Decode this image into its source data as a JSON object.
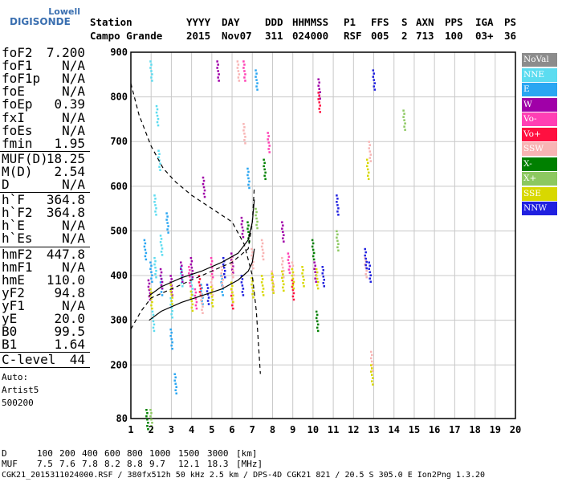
{
  "logo": {
    "line1": "Lowell",
    "line2": "DIGISONDE"
  },
  "header": {
    "row1": [
      "Station",
      "YYYY",
      "DAY",
      "DDD",
      "HHMMSS",
      "P1",
      "FFS",
      "S",
      "AXN",
      "PPS",
      "IGA",
      "PS"
    ],
    "row2": [
      "Campo Grande",
      "2015",
      "Nov07",
      "311",
      "024000",
      "RSF",
      "005",
      "2",
      "713",
      "100",
      "03+",
      "36"
    ]
  },
  "params": {
    "group1": [
      {
        "k": "foF2",
        "v": "7.200"
      },
      {
        "k": "foF1",
        "v": "N/A"
      },
      {
        "k": "foF1p",
        "v": "N/A"
      },
      {
        "k": "foE",
        "v": "N/A"
      },
      {
        "k": "foEp",
        "v": "0.39"
      },
      {
        "k": "fxI",
        "v": "N/A"
      },
      {
        "k": "foEs",
        "v": "N/A"
      },
      {
        "k": "fmin",
        "v": "1.95"
      }
    ],
    "group2": [
      {
        "k": "MUF(D)",
        "v": "18.25"
      },
      {
        "k": "M(D)",
        "v": "2.54"
      },
      {
        "k": "D",
        "v": "N/A"
      }
    ],
    "group3": [
      {
        "k": "h`F",
        "v": "364.8"
      },
      {
        "k": "h`F2",
        "v": "364.8"
      },
      {
        "k": "h`E",
        "v": "N/A"
      },
      {
        "k": "h`Es",
        "v": "N/A"
      }
    ],
    "group4": [
      {
        "k": "hmF2",
        "v": "447.8"
      },
      {
        "k": "hmF1",
        "v": "N/A"
      },
      {
        "k": "hmE",
        "v": "110.0"
      },
      {
        "k": "yF2",
        "v": "94.8"
      },
      {
        "k": "yF1",
        "v": "N/A"
      },
      {
        "k": "yE",
        "v": "20.0"
      },
      {
        "k": "B0",
        "v": "99.5"
      },
      {
        "k": "B1",
        "v": "1.64"
      }
    ],
    "group5": [
      {
        "k": "C-level",
        "v": "44"
      }
    ],
    "auto": [
      "Auto:",
      "Artist5",
      "500200"
    ]
  },
  "footer": {
    "d_label": "D",
    "d_values": [
      "100",
      "200",
      "400",
      "600",
      "800",
      "1000",
      "1500",
      "3000",
      "[km]"
    ],
    "muf_label": "MUF",
    "muf_values": [
      "7.5",
      "7.6",
      "7.8",
      "8.2",
      "8.8",
      "9.7",
      "12.1",
      "18.3",
      "[MHz]"
    ],
    "info": "CGK21_2015311024000.RSF / 380fx512h 50 kHz 2.5 km / DPS-4D CGK21 821 / 20.5 S 305.0 E Ion2Png 1.3.20"
  },
  "legend": [
    {
      "label": "NoVal",
      "color": "#8c8c8c"
    },
    {
      "label": "NNE",
      "color": "#5cdcf0"
    },
    {
      "label": "E",
      "color": "#2aa6f2"
    },
    {
      "label": "W",
      "color": "#a000a8"
    },
    {
      "label": "Vo-",
      "color": "#ff3fb4"
    },
    {
      "label": "Vo+",
      "color": "#ff1040"
    },
    {
      "label": "SSW",
      "color": "#f8b4b4"
    },
    {
      "label": "X-",
      "color": "#008000"
    },
    {
      "label": "X+",
      "color": "#8cc860"
    },
    {
      "label": "SSE",
      "color": "#d8d800"
    },
    {
      "label": "NNW",
      "color": "#2020e0"
    }
  ],
  "chart_data": {
    "type": "scatter",
    "title": "",
    "xlabel": "",
    "ylabel": "",
    "xlim": [
      1,
      20
    ],
    "ylim": [
      80,
      900
    ],
    "x_ticks": [
      1,
      2,
      3,
      4,
      5,
      6,
      7,
      8,
      9,
      10,
      11,
      12,
      13,
      14,
      15,
      16,
      17,
      18,
      19,
      20
    ],
    "y_ticks": [
      80,
      200,
      300,
      400,
      500,
      600,
      700,
      800,
      900
    ],
    "grid": true,
    "legend_position": "right",
    "series": [
      {
        "name": "NNE",
        "color": "#5cdcf0",
        "points": [
          [
            2.1,
            300
          ],
          [
            2.2,
            420
          ],
          [
            2.3,
            760
          ],
          [
            2.4,
            660
          ],
          [
            2.2,
            560
          ],
          [
            2.5,
            470
          ],
          [
            3.0,
            330
          ],
          [
            3.5,
            400
          ],
          [
            4.0,
            380
          ],
          [
            2.0,
            860
          ]
        ]
      },
      {
        "name": "E",
        "color": "#2aa6f2",
        "points": [
          [
            1.7,
            460
          ],
          [
            2.0,
            410
          ],
          [
            2.5,
            380
          ],
          [
            2.8,
            520
          ],
          [
            3.0,
            260
          ],
          [
            3.2,
            160
          ],
          [
            4.5,
            360
          ],
          [
            5.5,
            380
          ],
          [
            6.8,
            620
          ],
          [
            7.2,
            840
          ]
        ]
      },
      {
        "name": "W",
        "color": "#a000a8",
        "points": [
          [
            1.9,
            370
          ],
          [
            2.5,
            395
          ],
          [
            3.0,
            380
          ],
          [
            3.5,
            410
          ],
          [
            4.0,
            420
          ],
          [
            4.6,
            600
          ],
          [
            5.3,
            860
          ],
          [
            6.0,
            430
          ],
          [
            6.5,
            510
          ],
          [
            8.5,
            500
          ],
          [
            10.1,
            410
          ],
          [
            10.3,
            820
          ]
        ]
      },
      {
        "name": "Vo-",
        "color": "#ff3fb4",
        "points": [
          [
            3.9,
            400
          ],
          [
            4.2,
            350
          ],
          [
            5.0,
            420
          ],
          [
            6.6,
            860
          ],
          [
            7.8,
            700
          ],
          [
            8.8,
            430
          ]
        ]
      },
      {
        "name": "Vo+",
        "color": "#ff1040",
        "points": [
          [
            4.4,
            380
          ],
          [
            6.0,
            350
          ],
          [
            9.0,
            370
          ],
          [
            10.3,
            790
          ]
        ]
      },
      {
        "name": "SSW",
        "color": "#f8b4b4",
        "points": [
          [
            4.5,
            340
          ],
          [
            5.0,
            380
          ],
          [
            5.5,
            400
          ],
          [
            6.0,
            420
          ],
          [
            6.3,
            860
          ],
          [
            6.6,
            720
          ],
          [
            7.0,
            440
          ],
          [
            7.5,
            460
          ],
          [
            8.0,
            390
          ],
          [
            8.5,
            420
          ],
          [
            9.0,
            410
          ],
          [
            12.6,
            420
          ],
          [
            12.8,
            680
          ],
          [
            12.9,
            210
          ]
        ]
      },
      {
        "name": "X-",
        "color": "#008000",
        "points": [
          [
            1.8,
            80
          ],
          [
            6.8,
            500
          ],
          [
            7.6,
            640
          ],
          [
            10.0,
            460
          ],
          [
            10.2,
            300
          ]
        ]
      },
      {
        "name": "X+",
        "color": "#8cc860",
        "points": [
          [
            2.0,
            80
          ],
          [
            7.2,
            530
          ],
          [
            11.2,
            480
          ],
          [
            14.5,
            750
          ]
        ]
      },
      {
        "name": "SSE",
        "color": "#d8d800",
        "points": [
          [
            2.0,
            350
          ],
          [
            3.0,
            360
          ],
          [
            4.0,
            345
          ],
          [
            5.0,
            355
          ],
          [
            6.0,
            365
          ],
          [
            7.0,
            375
          ],
          [
            7.5,
            380
          ],
          [
            8.0,
            385
          ],
          [
            8.5,
            390
          ],
          [
            9.0,
            395
          ],
          [
            9.5,
            400
          ],
          [
            10.2,
            395
          ],
          [
            12.7,
            640
          ],
          [
            12.9,
            180
          ]
        ]
      },
      {
        "name": "NNW",
        "color": "#2020e0",
        "points": [
          [
            4.8,
            360
          ],
          [
            5.6,
            420
          ],
          [
            6.5,
            380
          ],
          [
            10.5,
            400
          ],
          [
            11.2,
            560
          ],
          [
            12.6,
            440
          ],
          [
            12.8,
            410
          ],
          [
            13.0,
            840
          ]
        ]
      }
    ],
    "curves": [
      {
        "style": "dashed",
        "points": [
          [
            1.0,
            830
          ],
          [
            1.4,
            760
          ],
          [
            2.0,
            690
          ],
          [
            2.6,
            640
          ],
          [
            3.2,
            610
          ],
          [
            4.0,
            580
          ],
          [
            5.0,
            550
          ],
          [
            6.0,
            520
          ],
          [
            6.6,
            470
          ],
          [
            7.0,
            400
          ],
          [
            7.2,
            320
          ],
          [
            7.4,
            180
          ]
        ]
      },
      {
        "style": "dashed",
        "points": [
          [
            1.0,
            280
          ],
          [
            1.5,
            320
          ],
          [
            2.0,
            350
          ],
          [
            3.0,
            370
          ],
          [
            4.0,
            390
          ],
          [
            5.0,
            410
          ],
          [
            6.0,
            430
          ],
          [
            6.8,
            460
          ],
          [
            7.0,
            520
          ],
          [
            7.1,
            600
          ]
        ]
      },
      {
        "style": "solid",
        "points": [
          [
            1.9,
            355
          ],
          [
            2.5,
            375
          ],
          [
            3.5,
            395
          ],
          [
            4.5,
            410
          ],
          [
            5.5,
            430
          ],
          [
            6.3,
            450
          ],
          [
            6.8,
            480
          ],
          [
            7.0,
            520
          ],
          [
            7.1,
            570
          ]
        ]
      },
      {
        "style": "solid",
        "points": [
          [
            1.9,
            300
          ],
          [
            2.5,
            320
          ],
          [
            3.5,
            340
          ],
          [
            4.5,
            355
          ],
          [
            5.5,
            370
          ],
          [
            6.3,
            390
          ],
          [
            6.8,
            410
          ],
          [
            7.0,
            430
          ],
          [
            7.1,
            460
          ]
        ]
      }
    ]
  }
}
